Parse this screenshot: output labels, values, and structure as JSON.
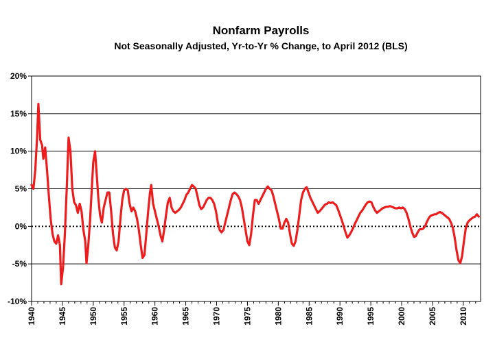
{
  "chart_data": {
    "type": "line",
    "title": "Nonfarm Payrolls",
    "subtitle": "Not Seasonally Adjusted, Yr-to-Yr % Change, to April 2012 (BLS)",
    "xlabel": "",
    "ylabel": "",
    "xlim": [
      1940,
      2012.8
    ],
    "ylim": [
      -10,
      20
    ],
    "x_ticks": [
      1940,
      1945,
      1950,
      1955,
      1960,
      1965,
      1970,
      1975,
      1980,
      1985,
      1990,
      1995,
      2000,
      2005,
      2010
    ],
    "x_tick_labels": [
      "1940",
      "1945",
      "1950",
      "1955",
      "1960",
      "1965",
      "1970",
      "1975",
      "1980",
      "1985",
      "1990",
      "1995",
      "2000",
      "2005",
      "2010"
    ],
    "y_ticks": [
      -10,
      -5,
      0,
      5,
      10,
      15,
      20
    ],
    "y_tick_labels": [
      "-10%",
      "-5%",
      "0%",
      "5%",
      "10%",
      "15%",
      "20%"
    ],
    "grid": "horizontal",
    "zero_line": "dotted",
    "legend": "none",
    "colors": {
      "series": "#ee1c1c",
      "grid": "#000000",
      "zero_line": "#000000"
    },
    "series": [
      {
        "points": [
          [
            1940.0,
            5.5
          ],
          [
            1940.3,
            5.0
          ],
          [
            1940.6,
            7.5
          ],
          [
            1940.9,
            12.0
          ],
          [
            1941.1,
            16.3
          ],
          [
            1941.4,
            11.5
          ],
          [
            1941.7,
            10.8
          ],
          [
            1941.9,
            9.0
          ],
          [
            1942.2,
            10.5
          ],
          [
            1942.5,
            7.5
          ],
          [
            1942.8,
            4.0
          ],
          [
            1943.1,
            1.0
          ],
          [
            1943.4,
            -1.0
          ],
          [
            1943.7,
            -2.0
          ],
          [
            1944.0,
            -2.3
          ],
          [
            1944.3,
            -1.2
          ],
          [
            1944.6,
            -2.5
          ],
          [
            1944.8,
            -7.7
          ],
          [
            1945.1,
            -5.5
          ],
          [
            1945.4,
            -1.0
          ],
          [
            1945.7,
            5.0
          ],
          [
            1946.0,
            11.8
          ],
          [
            1946.3,
            10.0
          ],
          [
            1946.6,
            5.0
          ],
          [
            1946.9,
            3.2
          ],
          [
            1947.2,
            2.8
          ],
          [
            1947.5,
            1.8
          ],
          [
            1947.8,
            3.0
          ],
          [
            1948.1,
            2.0
          ],
          [
            1948.4,
            -0.5
          ],
          [
            1948.7,
            -2.0
          ],
          [
            1948.9,
            -4.9
          ],
          [
            1949.2,
            -2.5
          ],
          [
            1949.5,
            1.0
          ],
          [
            1949.8,
            5.5
          ],
          [
            1950.0,
            8.5
          ],
          [
            1950.3,
            10.0
          ],
          [
            1950.6,
            6.5
          ],
          [
            1950.8,
            4.0
          ],
          [
            1951.1,
            1.5
          ],
          [
            1951.4,
            0.5
          ],
          [
            1951.7,
            2.5
          ],
          [
            1952.0,
            3.5
          ],
          [
            1952.3,
            4.5
          ],
          [
            1952.6,
            4.5
          ],
          [
            1952.9,
            2.0
          ],
          [
            1953.2,
            -1.0
          ],
          [
            1953.5,
            -2.8
          ],
          [
            1953.8,
            -3.2
          ],
          [
            1954.1,
            -2.0
          ],
          [
            1954.4,
            1.0
          ],
          [
            1954.7,
            3.5
          ],
          [
            1955.0,
            4.8
          ],
          [
            1955.3,
            5.0
          ],
          [
            1955.6,
            4.8
          ],
          [
            1955.9,
            3.0
          ],
          [
            1956.2,
            2.0
          ],
          [
            1956.5,
            2.5
          ],
          [
            1956.8,
            2.0
          ],
          [
            1957.1,
            1.0
          ],
          [
            1957.4,
            -0.5
          ],
          [
            1957.7,
            -2.5
          ],
          [
            1958.0,
            -4.2
          ],
          [
            1958.3,
            -3.8
          ],
          [
            1958.6,
            -1.0
          ],
          [
            1958.9,
            2.0
          ],
          [
            1959.2,
            4.5
          ],
          [
            1959.4,
            5.5
          ],
          [
            1959.7,
            3.0
          ],
          [
            1960.0,
            2.0
          ],
          [
            1960.3,
            1.0
          ],
          [
            1960.6,
            0.0
          ],
          [
            1960.9,
            -1.2
          ],
          [
            1961.2,
            -2.0
          ],
          [
            1961.5,
            -0.5
          ],
          [
            1961.8,
            1.5
          ],
          [
            1962.1,
            3.2
          ],
          [
            1962.4,
            3.8
          ],
          [
            1962.7,
            2.5
          ],
          [
            1963.0,
            2.0
          ],
          [
            1963.3,
            1.8
          ],
          [
            1963.6,
            2.0
          ],
          [
            1963.9,
            2.2
          ],
          [
            1964.2,
            2.5
          ],
          [
            1964.5,
            3.0
          ],
          [
            1964.8,
            3.5
          ],
          [
            1965.1,
            4.2
          ],
          [
            1965.4,
            4.5
          ],
          [
            1965.7,
            5.0
          ],
          [
            1966.0,
            5.5
          ],
          [
            1966.3,
            5.3
          ],
          [
            1966.6,
            5.0
          ],
          [
            1966.9,
            4.0
          ],
          [
            1967.2,
            2.8
          ],
          [
            1967.5,
            2.3
          ],
          [
            1967.8,
            2.5
          ],
          [
            1968.1,
            3.0
          ],
          [
            1968.4,
            3.5
          ],
          [
            1968.7,
            3.8
          ],
          [
            1969.0,
            3.8
          ],
          [
            1969.3,
            3.5
          ],
          [
            1969.6,
            3.0
          ],
          [
            1969.9,
            2.0
          ],
          [
            1970.2,
            0.5
          ],
          [
            1970.5,
            -0.5
          ],
          [
            1970.8,
            -0.8
          ],
          [
            1971.1,
            -0.5
          ],
          [
            1971.4,
            0.5
          ],
          [
            1971.7,
            1.5
          ],
          [
            1972.0,
            2.5
          ],
          [
            1972.3,
            3.5
          ],
          [
            1972.6,
            4.3
          ],
          [
            1972.9,
            4.5
          ],
          [
            1973.2,
            4.3
          ],
          [
            1973.5,
            4.0
          ],
          [
            1973.8,
            3.5
          ],
          [
            1974.1,
            2.5
          ],
          [
            1974.4,
            1.0
          ],
          [
            1974.7,
            -0.5
          ],
          [
            1975.0,
            -2.0
          ],
          [
            1975.3,
            -2.5
          ],
          [
            1975.6,
            -1.0
          ],
          [
            1975.9,
            1.5
          ],
          [
            1976.2,
            3.5
          ],
          [
            1976.5,
            3.5
          ],
          [
            1976.8,
            3.0
          ],
          [
            1977.1,
            3.5
          ],
          [
            1977.4,
            4.0
          ],
          [
            1977.7,
            4.5
          ],
          [
            1978.0,
            5.0
          ],
          [
            1978.3,
            5.3
          ],
          [
            1978.6,
            5.0
          ],
          [
            1978.9,
            4.8
          ],
          [
            1979.2,
            4.0
          ],
          [
            1979.5,
            3.0
          ],
          [
            1979.8,
            2.0
          ],
          [
            1980.1,
            1.0
          ],
          [
            1980.4,
            -0.3
          ],
          [
            1980.7,
            -0.3
          ],
          [
            1981.0,
            0.5
          ],
          [
            1981.3,
            1.0
          ],
          [
            1981.6,
            0.5
          ],
          [
            1981.9,
            -1.0
          ],
          [
            1982.2,
            -2.3
          ],
          [
            1982.5,
            -2.6
          ],
          [
            1982.8,
            -2.0
          ],
          [
            1983.1,
            -0.5
          ],
          [
            1983.4,
            1.5
          ],
          [
            1983.7,
            3.5
          ],
          [
            1984.0,
            4.5
          ],
          [
            1984.3,
            5.0
          ],
          [
            1984.6,
            5.2
          ],
          [
            1984.9,
            4.5
          ],
          [
            1985.2,
            3.8
          ],
          [
            1985.5,
            3.3
          ],
          [
            1985.8,
            2.8
          ],
          [
            1986.1,
            2.3
          ],
          [
            1986.4,
            1.8
          ],
          [
            1986.7,
            2.0
          ],
          [
            1987.0,
            2.3
          ],
          [
            1987.3,
            2.6
          ],
          [
            1987.6,
            2.9
          ],
          [
            1987.9,
            3.0
          ],
          [
            1988.2,
            3.2
          ],
          [
            1988.5,
            3.1
          ],
          [
            1988.8,
            3.2
          ],
          [
            1989.1,
            3.0
          ],
          [
            1989.4,
            2.8
          ],
          [
            1989.7,
            2.2
          ],
          [
            1990.0,
            1.5
          ],
          [
            1990.3,
            0.8
          ],
          [
            1990.6,
            0.0
          ],
          [
            1990.9,
            -0.8
          ],
          [
            1991.2,
            -1.5
          ],
          [
            1991.5,
            -1.2
          ],
          [
            1991.8,
            -0.8
          ],
          [
            1992.1,
            -0.3
          ],
          [
            1992.4,
            0.3
          ],
          [
            1992.7,
            0.8
          ],
          [
            1993.0,
            1.3
          ],
          [
            1993.3,
            1.8
          ],
          [
            1993.6,
            2.1
          ],
          [
            1993.9,
            2.5
          ],
          [
            1994.2,
            2.9
          ],
          [
            1994.5,
            3.2
          ],
          [
            1994.8,
            3.3
          ],
          [
            1995.1,
            3.2
          ],
          [
            1995.4,
            2.6
          ],
          [
            1995.7,
            2.1
          ],
          [
            1996.0,
            1.8
          ],
          [
            1996.3,
            2.0
          ],
          [
            1996.6,
            2.2
          ],
          [
            1996.9,
            2.4
          ],
          [
            1997.2,
            2.5
          ],
          [
            1997.5,
            2.6
          ],
          [
            1997.8,
            2.6
          ],
          [
            1998.1,
            2.7
          ],
          [
            1998.4,
            2.6
          ],
          [
            1998.7,
            2.5
          ],
          [
            1999.0,
            2.4
          ],
          [
            1999.3,
            2.4
          ],
          [
            1999.6,
            2.5
          ],
          [
            1999.9,
            2.4
          ],
          [
            2000.2,
            2.5
          ],
          [
            2000.5,
            2.3
          ],
          [
            2000.8,
            1.8
          ],
          [
            2001.1,
            1.0
          ],
          [
            2001.4,
            0.0
          ],
          [
            2001.7,
            -0.8
          ],
          [
            2002.0,
            -1.4
          ],
          [
            2002.3,
            -1.3
          ],
          [
            2002.6,
            -0.8
          ],
          [
            2002.9,
            -0.4
          ],
          [
            2003.2,
            -0.4
          ],
          [
            2003.5,
            -0.3
          ],
          [
            2003.8,
            0.0
          ],
          [
            2004.1,
            0.6
          ],
          [
            2004.4,
            1.1
          ],
          [
            2004.7,
            1.4
          ],
          [
            2005.0,
            1.5
          ],
          [
            2005.3,
            1.6
          ],
          [
            2005.6,
            1.6
          ],
          [
            2005.9,
            1.8
          ],
          [
            2006.2,
            1.9
          ],
          [
            2006.5,
            1.8
          ],
          [
            2006.8,
            1.6
          ],
          [
            2007.1,
            1.4
          ],
          [
            2007.4,
            1.2
          ],
          [
            2007.7,
            1.0
          ],
          [
            2008.0,
            0.5
          ],
          [
            2008.3,
            -0.2
          ],
          [
            2008.6,
            -1.5
          ],
          [
            2008.9,
            -3.2
          ],
          [
            2009.2,
            -4.5
          ],
          [
            2009.5,
            -4.9
          ],
          [
            2009.8,
            -4.0
          ],
          [
            2010.1,
            -2.0
          ],
          [
            2010.4,
            -0.3
          ],
          [
            2010.7,
            0.5
          ],
          [
            2011.0,
            0.8
          ],
          [
            2011.3,
            1.0
          ],
          [
            2011.6,
            1.2
          ],
          [
            2011.9,
            1.3
          ],
          [
            2012.2,
            1.6
          ],
          [
            2012.5,
            1.3
          ]
        ]
      }
    ]
  }
}
